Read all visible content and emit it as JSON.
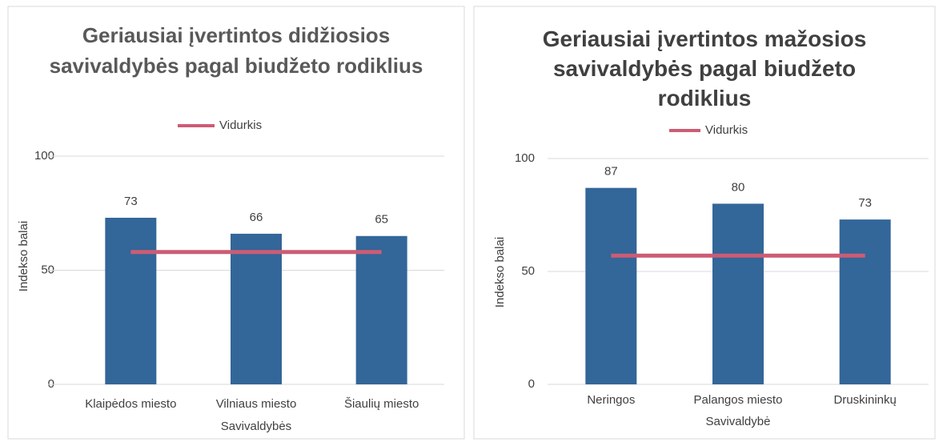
{
  "chart_data": [
    {
      "type": "bar",
      "title": "Geriausiai įvertintos didžiosios savivaldybės pagal biudžeto rodiklius",
      "x_label": "Savivaldybės",
      "y_label": "Indekso balai",
      "categories": [
        "Klaipėdos miesto",
        "Vilniaus miesto",
        "Šiaulių miesto"
      ],
      "values": [
        73,
        66,
        65
      ],
      "color": "#336699",
      "series": [
        {
          "name": "Vidurkis",
          "color": "#cc5c75",
          "values": [
            58,
            58,
            58
          ]
        }
      ],
      "ylim": [
        0,
        100
      ],
      "yticks": [
        0,
        50,
        100
      ],
      "grid": true
    },
    {
      "type": "bar",
      "title": "Geriausiai įvertintos mažosios savivaldybės pagal biudžeto rodiklius",
      "x_label": "Savivaldybė",
      "y_label": "Indekso balai",
      "categories": [
        "Neringos",
        "Palangos miesto",
        "Druskininkų"
      ],
      "values": [
        87,
        80,
        73
      ],
      "color": "#336699",
      "series": [
        {
          "name": "Vidurkis",
          "color": "#cc5c75",
          "values": [
            57,
            57,
            57
          ]
        }
      ],
      "ylim": [
        0,
        100
      ],
      "yticks": [
        0,
        50,
        100
      ],
      "grid": true
    }
  ]
}
